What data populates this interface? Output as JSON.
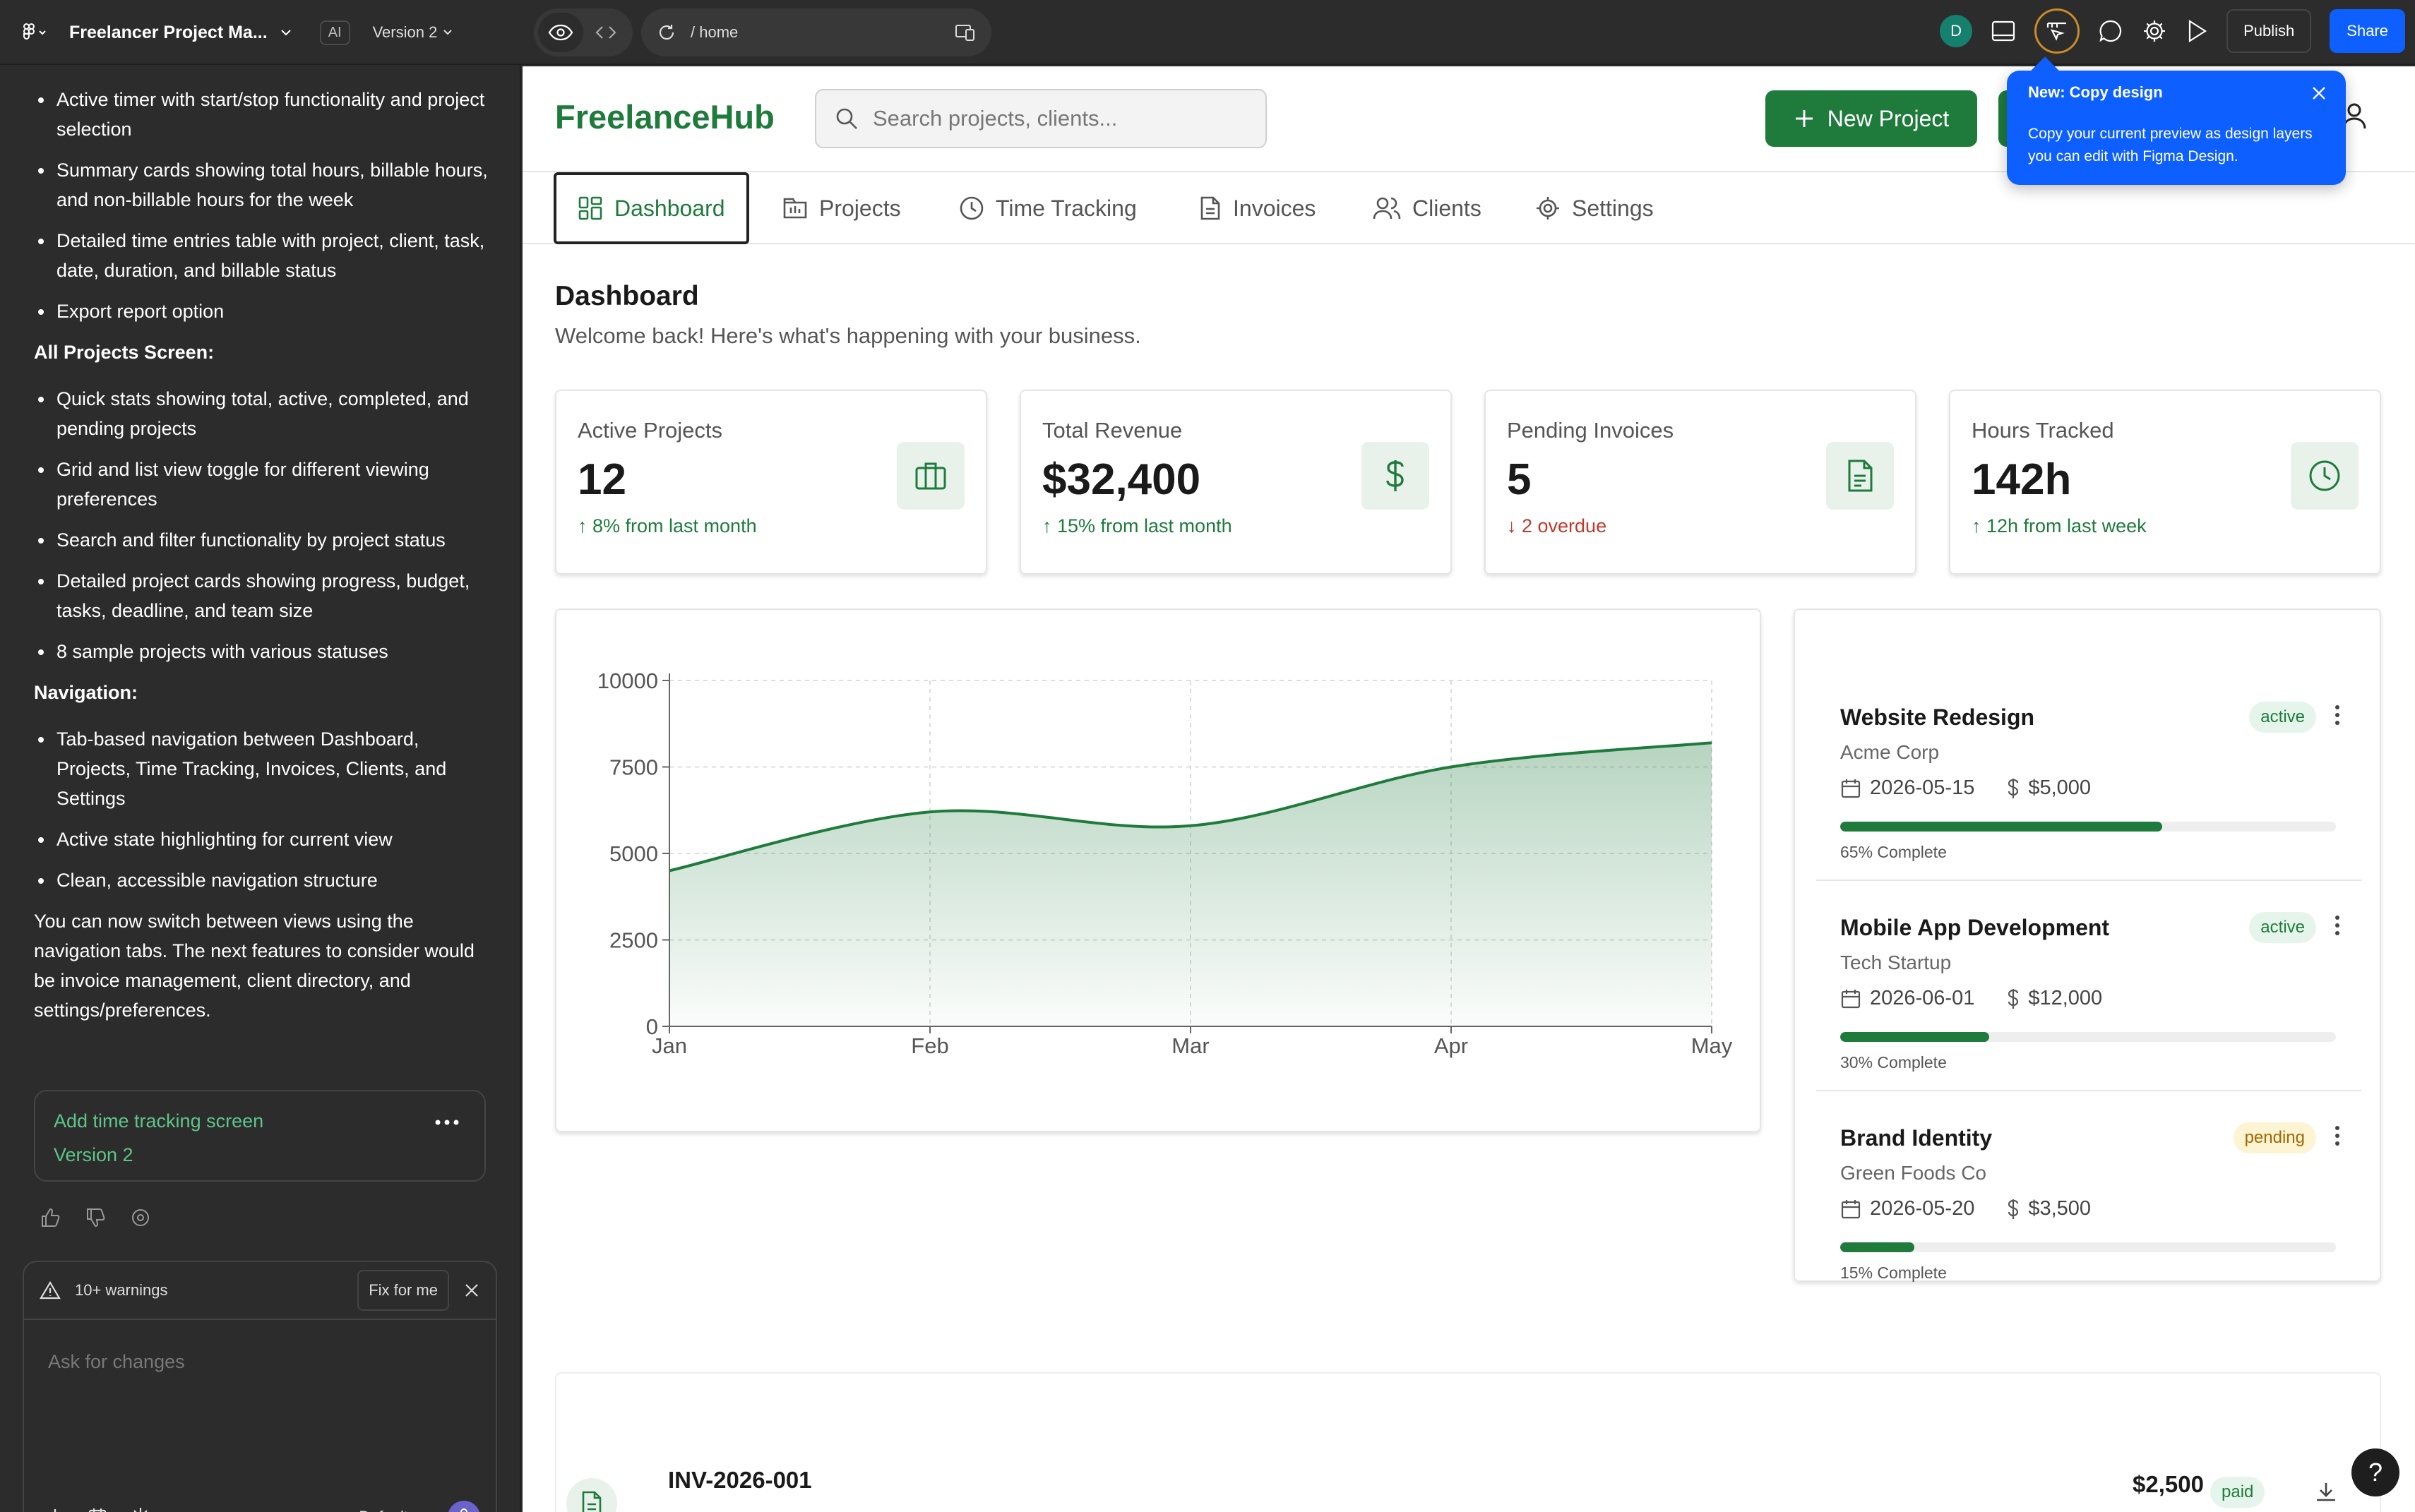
{
  "topbar": {
    "file_title": "Freelancer Project Ma...",
    "ai_badge": "AI",
    "version_label": "Version 2",
    "url_path": "/ home",
    "avatar_initial": "D",
    "publish_label": "Publish",
    "share_label": "Share"
  },
  "chat_panel": {
    "intro_list": [
      "Active timer with start/stop functionality and project selection",
      "Summary cards showing total hours, billable hours, and non-billable hours for the week",
      "Detailed time entries table with project, client, task, date, duration, and billable status",
      "Export report option"
    ],
    "all_projects_heading": "All Projects Screen:",
    "all_projects_list": [
      "Quick stats showing total, active, completed, and pending projects",
      "Grid and list view toggle for different viewing preferences",
      "Search and filter functionality by project status",
      "Detailed project cards showing progress, budget, tasks, deadline, and team size",
      "8 sample projects with various statuses"
    ],
    "navigation_heading": "Navigation:",
    "navigation_list": [
      "Tab-based navigation between Dashboard, Projects, Time Tracking, Invoices, Clients, and Settings",
      "Active state highlighting for current view",
      "Clean, accessible navigation structure"
    ],
    "closing_paragraph": "You can now switch between views using the navigation tabs. The next features to consider would be invoice management, client directory, and settings/preferences.",
    "version_card": {
      "title": "Add time tracking screen",
      "version": "Version 2"
    },
    "warnings_label": "10+ warnings",
    "fix_label": "Fix for me",
    "input_placeholder": "Ask for changes",
    "mode_label": "Default"
  },
  "toast": {
    "title": "New: Copy design",
    "body": "Copy your current preview as design layers you can edit with Figma Design."
  },
  "app": {
    "logo": "FreelanceHub",
    "search_placeholder": "Search projects, clients...",
    "new_project_label": "New Project",
    "tabs": [
      {
        "label": "Dashboard",
        "icon": "grid-icon"
      },
      {
        "label": "Projects",
        "icon": "projects-icon"
      },
      {
        "label": "Time Tracking",
        "icon": "clock-icon"
      },
      {
        "label": "Invoices",
        "icon": "file-icon"
      },
      {
        "label": "Clients",
        "icon": "users-icon"
      },
      {
        "label": "Settings",
        "icon": "gear-icon"
      }
    ],
    "page_title": "Dashboard",
    "page_subtitle": "Welcome back! Here's what's happening with your business.",
    "stats": [
      {
        "label": "Active Projects",
        "value": "12",
        "change": "↑ 8% from last month",
        "trend": "up",
        "icon": "briefcase-icon"
      },
      {
        "label": "Total Revenue",
        "value": "$32,400",
        "change": "↑ 15% from last month",
        "trend": "up",
        "icon": "dollar-icon"
      },
      {
        "label": "Pending Invoices",
        "value": "5",
        "change": "↓ 2 overdue",
        "trend": "down",
        "icon": "document-icon"
      },
      {
        "label": "Hours Tracked",
        "value": "142h",
        "change": "↑ 12h from last week",
        "trend": "up",
        "icon": "clock-icon"
      }
    ],
    "projects": [
      {
        "name": "Website Redesign",
        "client": "Acme Corp",
        "status": "active",
        "deadline": "2026-05-15",
        "budget": "$5,000",
        "progress": 65,
        "progress_label": "65% Complete"
      },
      {
        "name": "Mobile App Development",
        "client": "Tech Startup",
        "status": "active",
        "deadline": "2026-06-01",
        "budget": "$12,000",
        "progress": 30,
        "progress_label": "30% Complete"
      },
      {
        "name": "Brand Identity",
        "client": "Green Foods Co",
        "status": "pending",
        "deadline": "2026-05-20",
        "budget": "$3,500",
        "progress": 15,
        "progress_label": "15% Complete"
      }
    ],
    "invoice": {
      "number": "INV-2026-001",
      "amount": "$2,500",
      "status": "paid"
    },
    "help_label": "?"
  },
  "colors": {
    "brand_green": "#1e7b3c",
    "figma_blue": "#0d5fff",
    "negative_red": "#c0392b"
  },
  "chart_data": {
    "type": "area",
    "categories": [
      "Jan",
      "Feb",
      "Mar",
      "Apr",
      "May"
    ],
    "values": [
      4500,
      6200,
      5800,
      7500,
      8200
    ],
    "yticks": [
      0,
      2500,
      5000,
      7500,
      10000
    ],
    "ylim": [
      0,
      10000
    ],
    "grid": true,
    "legend": "none"
  }
}
